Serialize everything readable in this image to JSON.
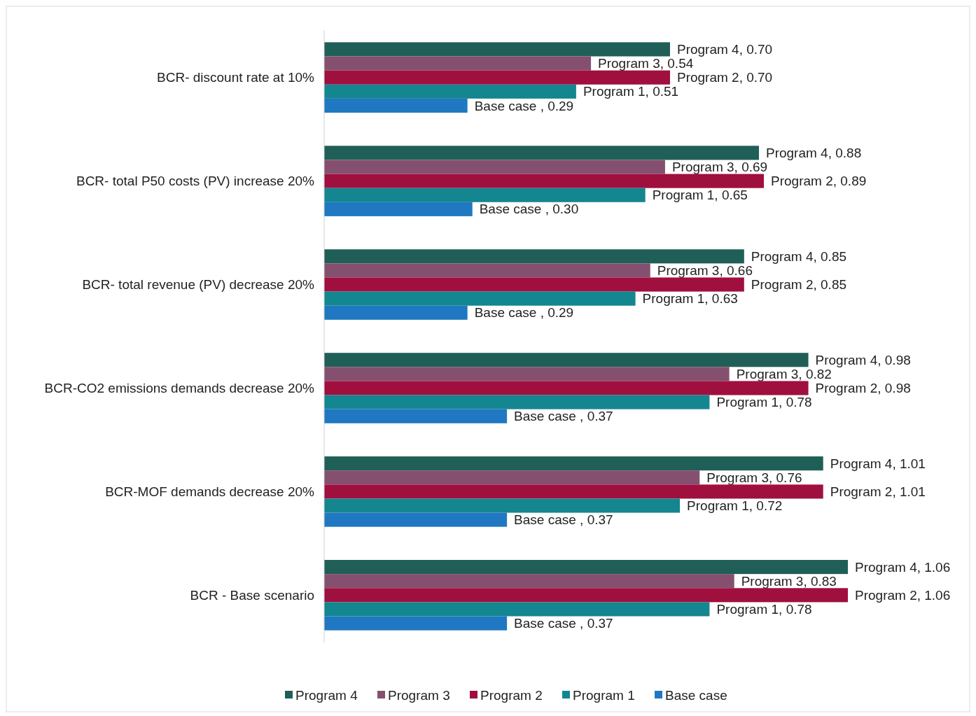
{
  "chart_data": {
    "type": "bar",
    "orientation": "horizontal",
    "categories": [
      "BCR- discount rate at 10%",
      "BCR- total P50 costs (PV) increase 20%",
      "BCR- total revenue (PV) decrease 20%",
      "BCR-CO2 emissions demands decrease 20%",
      "BCR-MOF demands decrease 20%",
      "BCR - Base scenario"
    ],
    "tick_labels": "y",
    "legend": "bottom",
    "series": [
      {
        "name": "Program 4",
        "color": "#1f5f57",
        "values": [
          0.7,
          0.88,
          0.85,
          0.98,
          1.01,
          1.06
        ],
        "value_labels": [
          "Program 4, 0.70",
          "Program 4, 0.88",
          "Program 4, 0.85",
          "Program 4, 0.98",
          "Program 4, 1.01",
          "Program 4, 1.06"
        ]
      },
      {
        "name": "Program 3",
        "color": "#85506f",
        "values": [
          0.54,
          0.69,
          0.66,
          0.82,
          0.76,
          0.83
        ],
        "value_labels": [
          "Program 3, 0.54",
          "Program 3, 0.69",
          "Program 3, 0.66",
          "Program 3, 0.82",
          "Program 3, 0.76",
          "Program 3, 0.83"
        ]
      },
      {
        "name": "Program 2",
        "color": "#a0103f",
        "values": [
          0.7,
          0.89,
          0.85,
          0.98,
          1.01,
          1.06
        ],
        "value_labels": [
          "Program 2, 0.70",
          "Program 2, 0.89",
          "Program 2, 0.85",
          "Program 2, 0.98",
          "Program 2, 1.01",
          "Program 2, 1.06"
        ]
      },
      {
        "name": "Program 1",
        "color": "#138690",
        "values": [
          0.51,
          0.65,
          0.63,
          0.78,
          0.72,
          0.78
        ],
        "value_labels": [
          "Program 1, 0.51",
          "Program 1, 0.65",
          "Program 1, 0.63",
          "Program 1, 0.78",
          "Program 1, 0.72",
          "Program 1, 0.78"
        ]
      },
      {
        "name": "Base case",
        "color": "#1f78c1",
        "values": [
          0.29,
          0.3,
          0.29,
          0.37,
          0.37,
          0.37
        ],
        "value_labels": [
          "Base case ,  0.29",
          "Base case ,  0.30",
          "Base case ,  0.29",
          "Base case ,  0.37",
          "Base case ,  0.37",
          "Base case ,  0.37"
        ]
      }
    ]
  }
}
